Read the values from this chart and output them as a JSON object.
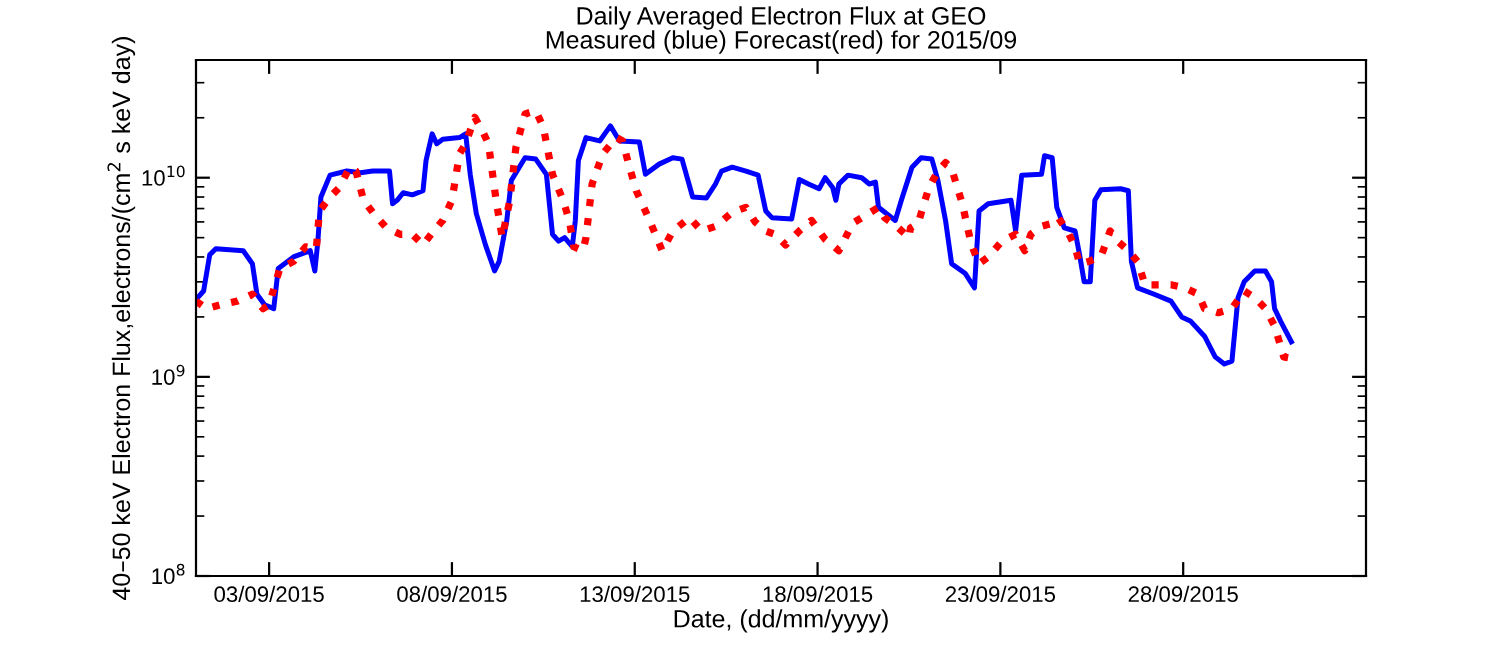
{
  "chart_data": {
    "type": "line",
    "title": "Daily Averaged Electron Flux at GEO",
    "subtitle": "Measured (blue) Forecast(red) for 2015/09",
    "xlabel": "Date, (dd/mm/yyyy)",
    "ylabel": "40–50 keV Electron Flux,electrons/(cm$^{2}$ s keV day)",
    "log": "y",
    "grid": false,
    "xlim": [
      "2015-09-01",
      "2015-10-03"
    ],
    "xticks": [
      {
        "value": "2015-09-03",
        "label": "03/09/2015"
      },
      {
        "value": "2015-09-08",
        "label": "08/09/2015"
      },
      {
        "value": "2015-09-13",
        "label": "13/09/2015"
      },
      {
        "value": "2015-09-18",
        "label": "18/09/2015"
      },
      {
        "value": "2015-09-23",
        "label": "23/09/2015"
      },
      {
        "value": "2015-09-28",
        "label": "28/09/2015"
      }
    ],
    "ylim": [
      100000000.0,
      39000000000.0
    ],
    "yticks": [
      {
        "value": 100000000.0,
        "label": "10$^{8}$"
      },
      {
        "value": 1000000000.0,
        "label": "10$^{9}$"
      },
      {
        "value": 10000000000.0,
        "label": "10$^{10}$"
      }
    ],
    "series": [
      {
        "color": "#0000ff",
        "line_style": "solid",
        "x": [
          "2015-09-01T00:00",
          "2015-09-01T05:00",
          "2015-09-01T09:00",
          "2015-09-01T13:00",
          "2015-09-02T07:00",
          "2015-09-02T13:00",
          "2015-09-02T16:00",
          "2015-09-02T21:00",
          "2015-09-03T03:00",
          "2015-09-03T06:00",
          "2015-09-03T16:00",
          "2015-09-04T03:00",
          "2015-09-04T06:00",
          "2015-09-04T08:00",
          "2015-09-04T10:00",
          "2015-09-04T16:00",
          "2015-09-05T03:00",
          "2015-09-05T12:00",
          "2015-09-05T20:00",
          "2015-09-06T07:00",
          "2015-09-06T09:00",
          "2015-09-06T12:00",
          "2015-09-06T16:00",
          "2015-09-06T22:00",
          "2015-09-07T05:00",
          "2015-09-07T07:00",
          "2015-09-07T11:00",
          "2015-09-07T14:00",
          "2015-09-07T18:00",
          "2015-09-08T05:00",
          "2015-09-08T09:00",
          "2015-09-08T12:00",
          "2015-09-08T16:00",
          "2015-09-08T22:00",
          "2015-09-09T04:00",
          "2015-09-09T07:00",
          "2015-09-09T12:00",
          "2015-09-09T15:00",
          "2015-09-10T00:00",
          "2015-09-10T07:00",
          "2015-09-10T14:00",
          "2015-09-10T18:00",
          "2015-09-10T22:00",
          "2015-09-11T02:00",
          "2015-09-11T07:00",
          "2015-09-11T09:00",
          "2015-09-11T11:00",
          "2015-09-11T16:00",
          "2015-09-12T01:00",
          "2015-09-12T08:00",
          "2015-09-12T14:00",
          "2015-09-13T03:00",
          "2015-09-13T07:00",
          "2015-09-13T16:00",
          "2015-09-14T01:00",
          "2015-09-14T07:00",
          "2015-09-14T14:00",
          "2015-09-14T23:00",
          "2015-09-15T05:00",
          "2015-09-15T09:00",
          "2015-09-15T16:00",
          "2015-09-16T01:00",
          "2015-09-16T09:00",
          "2015-09-16T14:00",
          "2015-09-16T18:00",
          "2015-09-17T07:00",
          "2015-09-17T12:00",
          "2015-09-17T18:00",
          "2015-09-18T01:00",
          "2015-09-18T05:00",
          "2015-09-18T10:00",
          "2015-09-18T12:00",
          "2015-09-18T14:00",
          "2015-09-18T20:00",
          "2015-09-19T05:00",
          "2015-09-19T10:00",
          "2015-09-19T14:00",
          "2015-09-19T16:00",
          "2015-09-20T03:00",
          "2015-09-20T07:00",
          "2015-09-20T14:00",
          "2015-09-20T20:00",
          "2015-09-21T03:00",
          "2015-09-21T07:00",
          "2015-09-21T12:00",
          "2015-09-21T16:00",
          "2015-09-22T01:00",
          "2015-09-22T07:00",
          "2015-09-22T10:00",
          "2015-09-22T16:00",
          "2015-09-23T07:00",
          "2015-09-23T10:00",
          "2015-09-23T14:00",
          "2015-09-24T03:00",
          "2015-09-24T05:00",
          "2015-09-24T10:00",
          "2015-09-24T13:00",
          "2015-09-24T18:00",
          "2015-09-25T01:00",
          "2015-09-25T04:00",
          "2015-09-25T07:00",
          "2015-09-25T11:00",
          "2015-09-25T14:00",
          "2015-09-25T18:00",
          "2015-09-26T07:00",
          "2015-09-26T12:00",
          "2015-09-26T14:00",
          "2015-09-26T18:00",
          "2015-09-27T05:00",
          "2015-09-27T16:00",
          "2015-09-27T23:00",
          "2015-09-28T05:00",
          "2015-09-28T14:00",
          "2015-09-28T21:00",
          "2015-09-29T03:00",
          "2015-09-29T08:00",
          "2015-09-29T12:00",
          "2015-09-29T16:00",
          "2015-09-29T23:00",
          "2015-09-30T06:00",
          "2015-09-30T10:00",
          "2015-09-30T12:00",
          "2015-09-30T16:00",
          "2015-09-30T23:00"
        ],
        "values": [
          2450000000.0,
          2700000000.0,
          4100000000.0,
          4400000000.0,
          4300000000.0,
          3700000000.0,
          2600000000.0,
          2300000000.0,
          2200000000.0,
          3500000000.0,
          4000000000.0,
          4300000000.0,
          3400000000.0,
          4800000000.0,
          8000000000.0,
          10300000000.0,
          10800000000.0,
          10600000000.0,
          10800000000.0,
          10800000000.0,
          7400000000.0,
          7700000000.0,
          8400000000.0,
          8200000000.0,
          8600000000.0,
          12200000000.0,
          16600000000.0,
          14800000000.0,
          15600000000.0,
          15900000000.0,
          16600000000.0,
          10400000000.0,
          6600000000.0,
          4600000000.0,
          3400000000.0,
          3800000000.0,
          6100000000.0,
          9700000000.0,
          12600000000.0,
          12400000000.0,
          10400000000.0,
          5200000000.0,
          4800000000.0,
          5000000000.0,
          4500000000.0,
          6100000000.0,
          12200000000.0,
          15900000000.0,
          15300000000.0,
          18200000000.0,
          15300000000.0,
          15100000000.0,
          10400000000.0,
          11700000000.0,
          12600000000.0,
          12400000000.0,
          8000000000.0,
          7900000000.0,
          9300000000.0,
          10800000000.0,
          11300000000.0,
          10800000000.0,
          10300000000.0,
          6800000000.0,
          6300000000.0,
          6200000000.0,
          9800000000.0,
          9300000000.0,
          8800000000.0,
          10000000000.0,
          8900000000.0,
          7700000000.0,
          9300000000.0,
          10300000000.0,
          10000000000.0,
          9300000000.0,
          9500000000.0,
          7100000000.0,
          6100000000.0,
          7700000000.0,
          11300000000.0,
          12600000000.0,
          12400000000.0,
          9700000000.0,
          6100000000.0,
          3700000000.0,
          3300000000.0,
          2800000000.0,
          6800000000.0,
          7400000000.0,
          7700000000.0,
          5400000000.0,
          10300000000.0,
          10400000000.0,
          12900000000.0,
          12600000000.0,
          7100000000.0,
          5600000000.0,
          5400000000.0,
          4100000000.0,
          3000000000.0,
          3000000000.0,
          7700000000.0,
          8700000000.0,
          8800000000.0,
          8600000000.0,
          3800000000.0,
          2800000000.0,
          2600000000.0,
          2400000000.0,
          2000000000.0,
          1900000000.0,
          1600000000.0,
          1260000000.0,
          1160000000.0,
          1200000000.0,
          2500000000.0,
          3000000000.0,
          3400000000.0,
          3400000000.0,
          3000000000.0,
          2200000000.0,
          1900000000.0,
          1500000000.0
        ]
      },
      {
        "color": "#ff0000",
        "line_style": "dotted",
        "x": [
          "2015-09-01T00:00",
          "2015-09-01T07:00",
          "2015-09-01T16:00",
          "2015-09-02T03:00",
          "2015-09-02T13:00",
          "2015-09-02T20:00",
          "2015-09-03T00:00",
          "2015-09-03T07:00",
          "2015-09-03T16:00",
          "2015-09-04T00:00",
          "2015-09-04T07:00",
          "2015-09-04T09:00",
          "2015-09-04T16:00",
          "2015-09-04T22:00",
          "2015-09-05T05:00",
          "2015-09-05T09:00",
          "2015-09-05T14:00",
          "2015-09-05T20:00",
          "2015-09-06T05:00",
          "2015-09-06T14:00",
          "2015-09-06T22:00",
          "2015-09-07T05:00",
          "2015-09-07T12:00",
          "2015-09-07T18:00",
          "2015-09-08T00:00",
          "2015-09-08T05:00",
          "2015-09-08T09:00",
          "2015-09-08T15:00",
          "2015-09-08T20:00",
          "2015-09-09T00:00",
          "2015-09-09T05:00",
          "2015-09-09T09:00",
          "2015-09-09T14:00",
          "2015-09-09T18:00",
          "2015-09-10T00:00",
          "2015-09-10T07:00",
          "2015-09-10T12:00",
          "2015-09-10T18:00",
          "2015-09-11T01:00",
          "2015-09-11T05:00",
          "2015-09-11T08:00",
          "2015-09-11T14:00",
          "2015-09-11T16:00",
          "2015-09-11T20:00",
          "2015-09-12T03:00",
          "2015-09-12T12:00",
          "2015-09-12T16:00",
          "2015-09-12T20:00",
          "2015-09-13T01:00",
          "2015-09-13T09:00",
          "2015-09-13T18:00",
          "2015-09-14T01:00",
          "2015-09-14T12:00",
          "2015-09-14T20:00",
          "2015-09-15T05:00",
          "2015-09-15T16:00",
          "2015-09-16T01:00",
          "2015-09-16T07:00",
          "2015-09-16T14:00",
          "2015-09-16T20:00",
          "2015-09-17T03:00",
          "2015-09-17T12:00",
          "2015-09-17T20:00",
          "2015-09-18T05:00",
          "2015-09-18T14:00",
          "2015-09-18T23:00",
          "2015-09-19T05:00",
          "2015-09-19T16:00",
          "2015-09-19T20:00",
          "2015-09-20T05:00",
          "2015-09-20T12:00",
          "2015-09-20T13:00",
          "2015-09-20T18:00",
          "2015-09-21T01:00",
          "2015-09-21T07:00",
          "2015-09-21T12:00",
          "2015-09-21T16:00",
          "2015-09-21T23:00",
          "2015-09-22T05:00",
          "2015-09-22T10:00",
          "2015-09-22T16:00",
          "2015-09-23T01:00",
          "2015-09-23T10:00",
          "2015-09-23T16:00",
          "2015-09-23T20:00",
          "2015-09-24T03:00",
          "2015-09-24T10:00",
          "2015-09-24T14:00",
          "2015-09-24T20:00",
          "2015-09-25T01:00",
          "2015-09-25T04:00",
          "2015-09-25T10:00",
          "2015-09-25T18:00",
          "2015-09-26T00:00",
          "2015-09-26T05:00",
          "2015-09-26T12:00",
          "2015-09-26T18:00",
          "2015-09-26T23:00",
          "2015-09-27T05:00",
          "2015-09-27T16:00",
          "2015-09-28T01:00",
          "2015-09-28T10:00",
          "2015-09-28T14:00",
          "2015-09-28T23:00",
          "2015-09-29T08:00",
          "2015-09-29T16:00",
          "2015-09-29T23:00",
          "2015-09-30T06:00",
          "2015-09-30T12:00",
          "2015-09-30T18:00",
          "2015-10-01T01:00"
        ],
        "values": [
          2400000000.0,
          2200000000.0,
          2300000000.0,
          2400000000.0,
          2600000000.0,
          2200000000.0,
          2300000000.0,
          3500000000.0,
          3800000000.0,
          4500000000.0,
          4400000000.0,
          6800000000.0,
          8000000000.0,
          8900000000.0,
          11300000000.0,
          10800000000.0,
          7700000000.0,
          6700000000.0,
          5600000000.0,
          5200000000.0,
          5200000000.0,
          4600000000.0,
          5400000000.0,
          6100000000.0,
          7700000000.0,
          13200000000.0,
          14800000000.0,
          20100000000.0,
          17200000000.0,
          14800000000.0,
          7700000000.0,
          5000000000.0,
          7700000000.0,
          14200000000.0,
          20900000000.0,
          21700000000.0,
          17900000000.0,
          10400000000.0,
          7700000000.0,
          6100000000.0,
          4500000000.0,
          4300000000.0,
          5000000000.0,
          9300000000.0,
          13200000000.0,
          15900000000.0,
          15300000000.0,
          11700000000.0,
          8600000000.0,
          6300000000.0,
          4300000000.0,
          5400000000.0,
          6300000000.0,
          5400000000.0,
          5700000000.0,
          6700000000.0,
          7100000000.0,
          6000000000.0,
          5400000000.0,
          5200000000.0,
          4600000000.0,
          5400000000.0,
          6100000000.0,
          4900000000.0,
          4300000000.0,
          5900000000.0,
          6300000000.0,
          7100000000.0,
          6300000000.0,
          5600000000.0,
          5000000000.0,
          5600000000.0,
          5900000000.0,
          8900000000.0,
          10800000000.0,
          11900000000.0,
          11100000000.0,
          7400000000.0,
          4600000000.0,
          3700000000.0,
          4000000000.0,
          4800000000.0,
          5200000000.0,
          4300000000.0,
          5200000000.0,
          5700000000.0,
          5900000000.0,
          6300000000.0,
          5400000000.0,
          4500000000.0,
          3700000000.0,
          3800000000.0,
          4000000000.0,
          5400000000.0,
          4800000000.0,
          4300000000.0,
          3800000000.0,
          2900000000.0,
          2900000000.0,
          2900000000.0,
          2800000000.0,
          2600000000.0,
          2200000000.0,
          2100000000.0,
          2200000000.0,
          2700000000.0,
          2500000000.0,
          2200000000.0,
          1800000000.0,
          1260000000.0,
          1230000000.0
        ]
      }
    ]
  }
}
